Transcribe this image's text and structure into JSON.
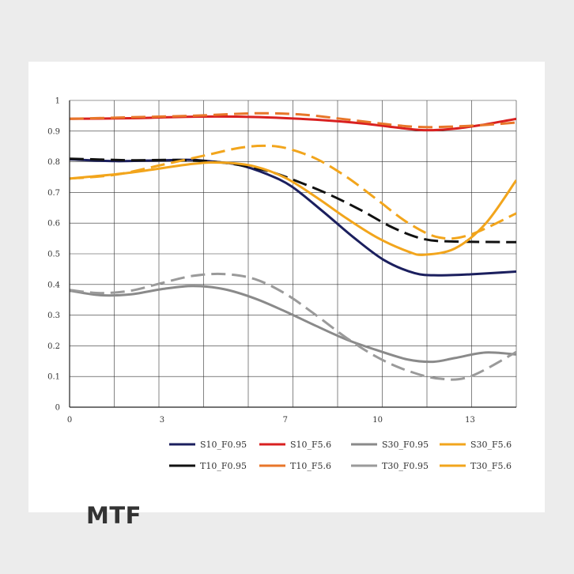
{
  "title": "MTF",
  "chart_data": {
    "type": "line",
    "xlim": [
      0,
      14.5
    ],
    "ylim": [
      0,
      1
    ],
    "x_ticks": [
      0,
      3,
      7,
      10,
      13
    ],
    "y_ticks": [
      0,
      0.1,
      0.2,
      0.3,
      0.4,
      0.5,
      0.6,
      0.7,
      0.8,
      0.9,
      1
    ],
    "grid": true,
    "legend_position": "bottom",
    "series": [
      {
        "name": "S10_F0.95",
        "color": "#1b1f5e",
        "dash": "solid",
        "points": [
          [
            0,
            0.808
          ],
          [
            1.5,
            0.802
          ],
          [
            3,
            0.805
          ],
          [
            4,
            0.806
          ],
          [
            4.7,
            0.8
          ],
          [
            5.5,
            0.79
          ],
          [
            6.4,
            0.76
          ],
          [
            7.2,
            0.72
          ],
          [
            8.2,
            0.64
          ],
          [
            9.2,
            0.555
          ],
          [
            10.2,
            0.48
          ],
          [
            11.2,
            0.437
          ],
          [
            12,
            0.43
          ],
          [
            13,
            0.433
          ],
          [
            14.5,
            0.442
          ]
        ]
      },
      {
        "name": "T10_F0.95",
        "color": "#111111",
        "dash": "dashed",
        "points": [
          [
            0,
            0.81
          ],
          [
            2,
            0.805
          ],
          [
            3.5,
            0.806
          ],
          [
            4.7,
            0.8
          ],
          [
            5.6,
            0.788
          ],
          [
            6.5,
            0.768
          ],
          [
            7.5,
            0.732
          ],
          [
            8.5,
            0.69
          ],
          [
            9.5,
            0.64
          ],
          [
            10.5,
            0.585
          ],
          [
            11.5,
            0.548
          ],
          [
            12.5,
            0.54
          ],
          [
            14.5,
            0.538
          ]
        ]
      },
      {
        "name": "S10_F5.6",
        "color": "#d92020",
        "dash": "solid",
        "points": [
          [
            0,
            0.94
          ],
          [
            2,
            0.942
          ],
          [
            4,
            0.947
          ],
          [
            6,
            0.946
          ],
          [
            8,
            0.937
          ],
          [
            9.5,
            0.925
          ],
          [
            10.5,
            0.913
          ],
          [
            11.5,
            0.903
          ],
          [
            12.5,
            0.908
          ],
          [
            13.5,
            0.922
          ],
          [
            14.5,
            0.94
          ]
        ]
      },
      {
        "name": "T10_F5.6",
        "color": "#e8762a",
        "dash": "dashed",
        "points": [
          [
            0,
            0.94
          ],
          [
            2,
            0.945
          ],
          [
            4,
            0.95
          ],
          [
            6,
            0.958
          ],
          [
            7.5,
            0.954
          ],
          [
            9,
            0.938
          ],
          [
            10.5,
            0.92
          ],
          [
            11.5,
            0.913
          ],
          [
            12.5,
            0.915
          ],
          [
            13.5,
            0.92
          ],
          [
            14.5,
            0.928
          ]
        ]
      },
      {
        "name": "S30_F0.95",
        "color": "#8a8a8a",
        "dash": "solid",
        "points": [
          [
            0,
            0.38
          ],
          [
            1,
            0.365
          ],
          [
            2,
            0.368
          ],
          [
            3,
            0.385
          ],
          [
            4,
            0.395
          ],
          [
            5,
            0.385
          ],
          [
            6,
            0.355
          ],
          [
            7,
            0.312
          ],
          [
            8,
            0.265
          ],
          [
            9,
            0.22
          ],
          [
            10,
            0.185
          ],
          [
            11,
            0.155
          ],
          [
            11.8,
            0.148
          ],
          [
            12.5,
            0.16
          ],
          [
            13.5,
            0.178
          ],
          [
            14.5,
            0.172
          ]
        ]
      },
      {
        "name": "T30_F0.95",
        "color": "#9a9a9a",
        "dash": "dashed",
        "points": [
          [
            0,
            0.382
          ],
          [
            1,
            0.372
          ],
          [
            2,
            0.38
          ],
          [
            3,
            0.405
          ],
          [
            4,
            0.428
          ],
          [
            5,
            0.434
          ],
          [
            6,
            0.418
          ],
          [
            7,
            0.37
          ],
          [
            8,
            0.3
          ],
          [
            9,
            0.225
          ],
          [
            10,
            0.162
          ],
          [
            11,
            0.118
          ],
          [
            12,
            0.093
          ],
          [
            13,
            0.1
          ],
          [
            14.5,
            0.18
          ]
        ]
      },
      {
        "name": "S30_F5.6",
        "color": "#f2a51c",
        "dash": "solid",
        "points": [
          [
            0,
            0.745
          ],
          [
            2,
            0.765
          ],
          [
            4,
            0.793
          ],
          [
            5,
            0.797
          ],
          [
            6,
            0.785
          ],
          [
            7,
            0.748
          ],
          [
            8,
            0.685
          ],
          [
            9,
            0.615
          ],
          [
            10,
            0.552
          ],
          [
            11,
            0.507
          ],
          [
            11.5,
            0.497
          ],
          [
            12.5,
            0.517
          ],
          [
            13.5,
            0.598
          ],
          [
            14.5,
            0.74
          ]
        ]
      },
      {
        "name": "T30_F5.6",
        "color": "#f2a51c",
        "dash": "dashed",
        "points": [
          [
            0,
            0.745
          ],
          [
            1.5,
            0.758
          ],
          [
            3,
            0.79
          ],
          [
            4.5,
            0.823
          ],
          [
            5.5,
            0.845
          ],
          [
            6.3,
            0.852
          ],
          [
            7,
            0.845
          ],
          [
            8,
            0.81
          ],
          [
            9,
            0.75
          ],
          [
            10,
            0.675
          ],
          [
            11,
            0.6
          ],
          [
            12,
            0.553
          ],
          [
            13,
            0.562
          ],
          [
            14.5,
            0.632
          ]
        ]
      }
    ]
  },
  "legend": {
    "row1": [
      "S10_F0.95",
      "S10_F5.6",
      "S30_F0.95",
      "S30_F5.6"
    ],
    "row2": [
      "T10_F0.95",
      "T10_F5.6",
      "T30_F0.95",
      "T30_F5.6"
    ]
  }
}
